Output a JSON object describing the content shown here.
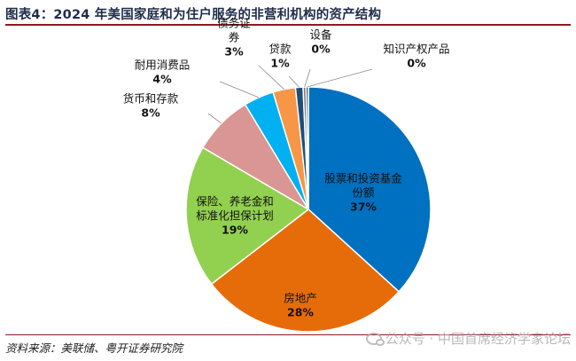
{
  "title": "图表4：2024 年美国家庭和为住户服务的非营利机构的资产结构",
  "source": "资料来源：美联储、粤开证券研究院",
  "watermark": "公众号 · 中国首席经济学家论坛",
  "chart_data": {
    "type": "pie",
    "title": "图表4：2024 年美国家庭和为住户服务的非营利机构的资产结构",
    "slices": [
      {
        "label": [
          "股票和投资基金",
          "份额"
        ],
        "pct_label": "37%",
        "value": 37,
        "color": "#0070c0"
      },
      {
        "label": [
          "房地产"
        ],
        "pct_label": "28%",
        "value": 28,
        "color": "#e66c0a"
      },
      {
        "label": [
          "保险、养老金和",
          "标准化担保计划"
        ],
        "pct_label": "19%",
        "value": 19,
        "color": "#92d050"
      },
      {
        "label": [
          "货币和存款"
        ],
        "pct_label": "8%",
        "value": 8,
        "color": "#da9694"
      },
      {
        "label": [
          "耐用消费品"
        ],
        "pct_label": "4%",
        "value": 4,
        "color": "#00b0f0"
      },
      {
        "label": [
          "债务证",
          "券"
        ],
        "pct_label": "3%",
        "value": 3,
        "color": "#f79646"
      },
      {
        "label": [
          "贷款"
        ],
        "pct_label": "1%",
        "value": 1,
        "color": "#1f4e79"
      },
      {
        "label": [
          "设备"
        ],
        "pct_label": "0%",
        "value": 0.4,
        "color": "#7f7f7f"
      },
      {
        "label": [
          "知识产权产品"
        ],
        "pct_label": "0%",
        "value": 0.3,
        "color": "#17365d"
      }
    ]
  }
}
